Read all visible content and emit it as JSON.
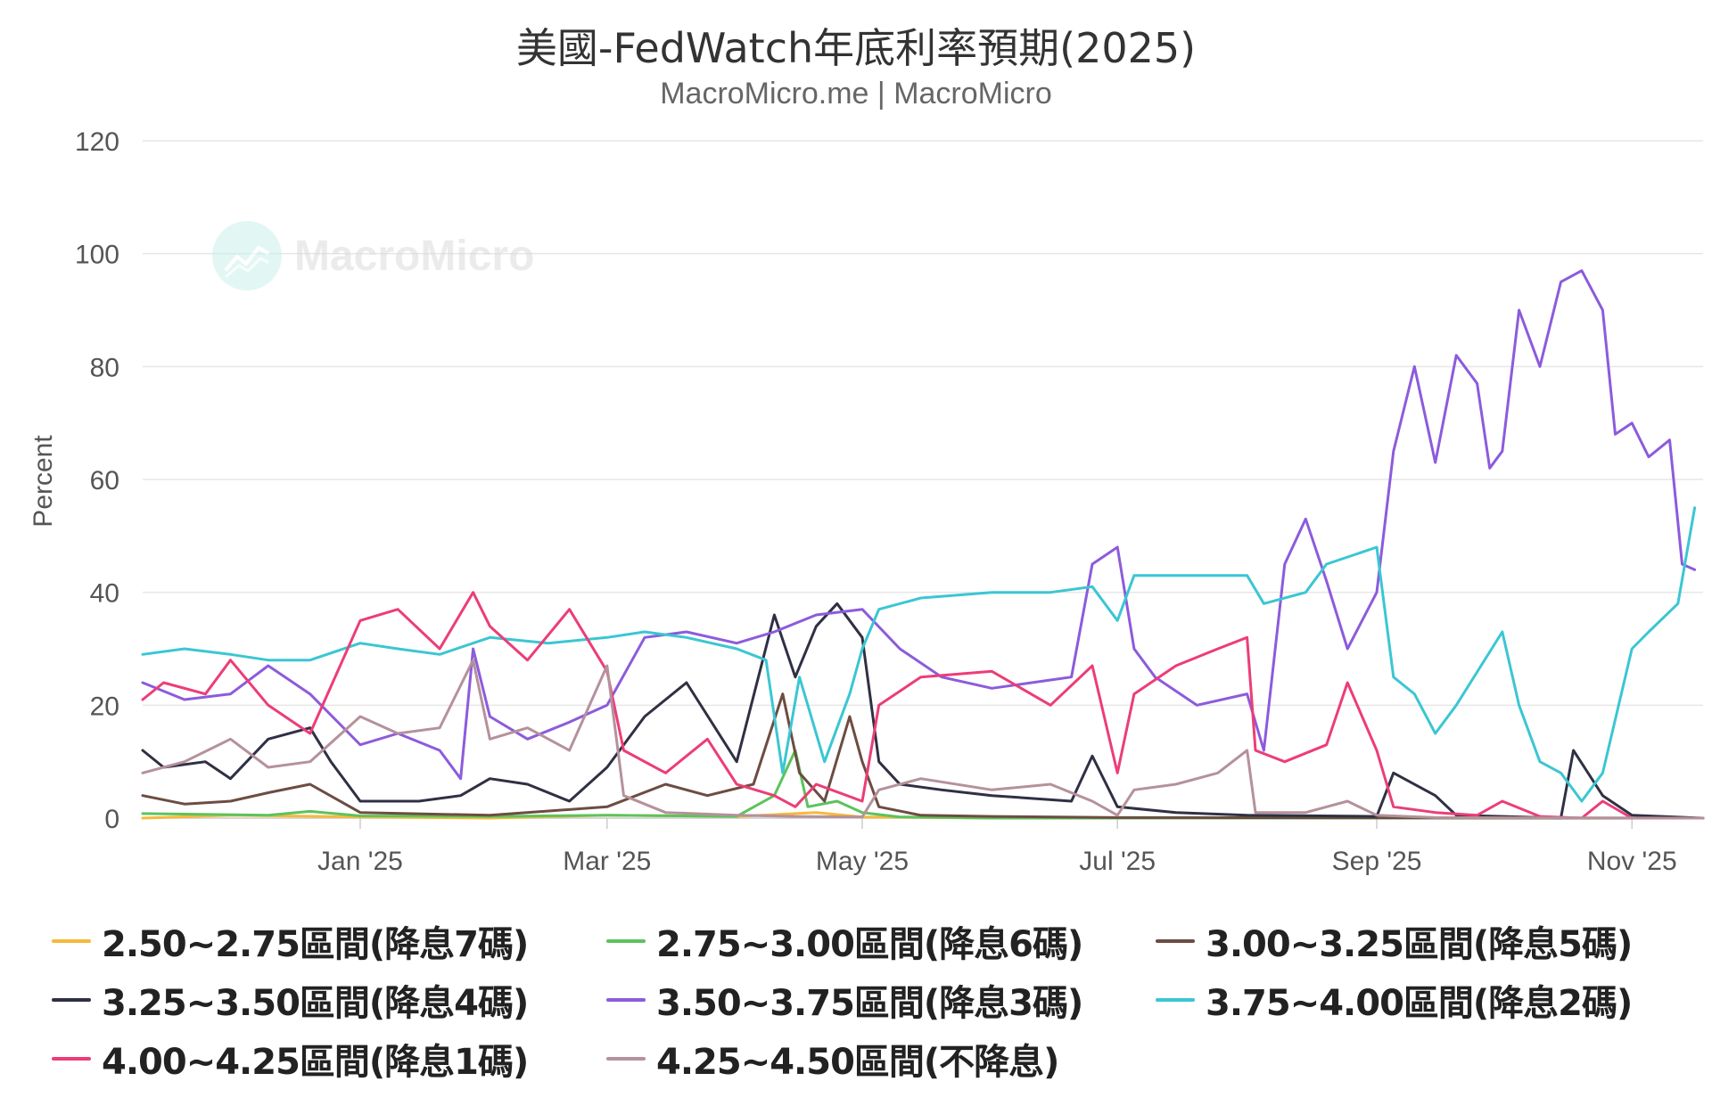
{
  "chart_data": {
    "type": "line",
    "title": "美國-FedWatch年底利率預期(2025)",
    "subtitle": "MacroMicro.me | MacroMicro",
    "watermark": "MacroMicro",
    "ylabel": "Percent",
    "ylim": [
      0,
      120
    ],
    "yticks": [
      0,
      20,
      40,
      60,
      80,
      100,
      120
    ],
    "xlim": [
      "2024-11-10",
      "2025-11-18"
    ],
    "xticks": [
      {
        "date": "2025-01-01",
        "label": "Jan '25"
      },
      {
        "date": "2025-03-01",
        "label": "Mar '25"
      },
      {
        "date": "2025-05-01",
        "label": "May '25"
      },
      {
        "date": "2025-07-01",
        "label": "Jul '25"
      },
      {
        "date": "2025-09-01",
        "label": "Sep '25"
      },
      {
        "date": "2025-11-01",
        "label": "Nov '25"
      }
    ],
    "grid": true,
    "legend_position": "bottom",
    "series": [
      {
        "name": "2.50~2.75區間(降息7碼)",
        "color": "#f6b93b",
        "points": [
          [
            "2024-11-10",
            0
          ],
          [
            "2024-12-01",
            0.5
          ],
          [
            "2025-01-01",
            0.2
          ],
          [
            "2025-02-01",
            0
          ],
          [
            "2025-03-01",
            0.5
          ],
          [
            "2025-04-01",
            0.3
          ],
          [
            "2025-04-20",
            1
          ],
          [
            "2025-05-01",
            0.2
          ],
          [
            "2025-06-01",
            0
          ],
          [
            "2025-09-01",
            0
          ],
          [
            "2025-11-18",
            0
          ]
        ]
      },
      {
        "name": "2.75~3.00區間(降息6碼)",
        "color": "#5cc35c",
        "points": [
          [
            "2024-11-10",
            0.8
          ],
          [
            "2024-12-10",
            0.5
          ],
          [
            "2024-12-20",
            1.2
          ],
          [
            "2025-01-01",
            0.4
          ],
          [
            "2025-02-01",
            0.3
          ],
          [
            "2025-03-01",
            0.5
          ],
          [
            "2025-04-01",
            0.3
          ],
          [
            "2025-04-10",
            4
          ],
          [
            "2025-04-15",
            12
          ],
          [
            "2025-04-18",
            2
          ],
          [
            "2025-04-25",
            3
          ],
          [
            "2025-05-01",
            1
          ],
          [
            "2025-05-10",
            0.2
          ],
          [
            "2025-06-01",
            0
          ],
          [
            "2025-11-18",
            0
          ]
        ]
      },
      {
        "name": "3.00~3.25區間(降息5碼)",
        "color": "#6d4c41",
        "points": [
          [
            "2024-11-10",
            4
          ],
          [
            "2024-11-20",
            2.5
          ],
          [
            "2024-12-01",
            3
          ],
          [
            "2024-12-10",
            4.5
          ],
          [
            "2024-12-20",
            6
          ],
          [
            "2025-01-01",
            1
          ],
          [
            "2025-02-01",
            0.5
          ],
          [
            "2025-03-01",
            2
          ],
          [
            "2025-03-15",
            6
          ],
          [
            "2025-03-25",
            4
          ],
          [
            "2025-04-05",
            6
          ],
          [
            "2025-04-12",
            22
          ],
          [
            "2025-04-16",
            8
          ],
          [
            "2025-04-22",
            3
          ],
          [
            "2025-04-28",
            18
          ],
          [
            "2025-05-01",
            10
          ],
          [
            "2025-05-05",
            2
          ],
          [
            "2025-05-15",
            0.5
          ],
          [
            "2025-06-01",
            0.3
          ],
          [
            "2025-07-01",
            0.1
          ],
          [
            "2025-11-18",
            0
          ]
        ]
      },
      {
        "name": "3.25~3.50區間(降息4碼)",
        "color": "#2f3044",
        "points": [
          [
            "2024-11-10",
            12
          ],
          [
            "2024-11-15",
            9
          ],
          [
            "2024-11-25",
            10
          ],
          [
            "2024-12-01",
            7
          ],
          [
            "2024-12-10",
            14
          ],
          [
            "2024-12-20",
            16
          ],
          [
            "2024-12-25",
            10
          ],
          [
            "2025-01-01",
            3
          ],
          [
            "2025-01-15",
            3
          ],
          [
            "2025-01-25",
            4
          ],
          [
            "2025-02-01",
            7
          ],
          [
            "2025-02-10",
            6
          ],
          [
            "2025-02-20",
            3
          ],
          [
            "2025-03-01",
            9
          ],
          [
            "2025-03-10",
            18
          ],
          [
            "2025-03-20",
            24
          ],
          [
            "2025-04-01",
            10
          ],
          [
            "2025-04-10",
            36
          ],
          [
            "2025-04-15",
            25
          ],
          [
            "2025-04-20",
            34
          ],
          [
            "2025-04-25",
            38
          ],
          [
            "2025-05-01",
            32
          ],
          [
            "2025-05-05",
            10
          ],
          [
            "2025-05-10",
            6
          ],
          [
            "2025-05-20",
            5
          ],
          [
            "2025-06-01",
            4
          ],
          [
            "2025-06-20",
            3
          ],
          [
            "2025-06-25",
            11
          ],
          [
            "2025-07-01",
            2
          ],
          [
            "2025-07-15",
            1
          ],
          [
            "2025-08-01",
            0.5
          ],
          [
            "2025-09-01",
            0.3
          ],
          [
            "2025-09-05",
            8
          ],
          [
            "2025-09-15",
            4
          ],
          [
            "2025-09-20",
            0.5
          ],
          [
            "2025-10-01",
            0.3
          ],
          [
            "2025-10-15",
            0
          ],
          [
            "2025-10-18",
            12
          ],
          [
            "2025-10-25",
            4
          ],
          [
            "2025-11-01",
            0.5
          ],
          [
            "2025-11-18",
            0
          ]
        ]
      },
      {
        "name": "3.50~3.75區間(降息3碼)",
        "color": "#8c5bdc",
        "points": [
          [
            "2024-11-10",
            24
          ],
          [
            "2024-11-20",
            21
          ],
          [
            "2024-12-01",
            22
          ],
          [
            "2024-12-10",
            27
          ],
          [
            "2024-12-20",
            22
          ],
          [
            "2025-01-01",
            13
          ],
          [
            "2025-01-10",
            15
          ],
          [
            "2025-01-20",
            12
          ],
          [
            "2025-01-25",
            7
          ],
          [
            "2025-01-28",
            30
          ],
          [
            "2025-02-01",
            18
          ],
          [
            "2025-02-10",
            14
          ],
          [
            "2025-02-20",
            17
          ],
          [
            "2025-03-01",
            20
          ],
          [
            "2025-03-10",
            32
          ],
          [
            "2025-03-20",
            33
          ],
          [
            "2025-04-01",
            31
          ],
          [
            "2025-04-10",
            33
          ],
          [
            "2025-04-20",
            36
          ],
          [
            "2025-05-01",
            37
          ],
          [
            "2025-05-10",
            30
          ],
          [
            "2025-05-20",
            25
          ],
          [
            "2025-06-01",
            23
          ],
          [
            "2025-06-20",
            25
          ],
          [
            "2025-06-25",
            45
          ],
          [
            "2025-07-01",
            48
          ],
          [
            "2025-07-05",
            30
          ],
          [
            "2025-07-10",
            25
          ],
          [
            "2025-07-20",
            20
          ],
          [
            "2025-08-01",
            22
          ],
          [
            "2025-08-05",
            12
          ],
          [
            "2025-08-10",
            45
          ],
          [
            "2025-08-15",
            53
          ],
          [
            "2025-08-20",
            42
          ],
          [
            "2025-08-25",
            30
          ],
          [
            "2025-09-01",
            40
          ],
          [
            "2025-09-05",
            65
          ],
          [
            "2025-09-10",
            80
          ],
          [
            "2025-09-15",
            63
          ],
          [
            "2025-09-20",
            82
          ],
          [
            "2025-09-25",
            77
          ],
          [
            "2025-09-28",
            62
          ],
          [
            "2025-10-01",
            65
          ],
          [
            "2025-10-05",
            90
          ],
          [
            "2025-10-10",
            80
          ],
          [
            "2025-10-15",
            95
          ],
          [
            "2025-10-20",
            97
          ],
          [
            "2025-10-25",
            90
          ],
          [
            "2025-10-28",
            68
          ],
          [
            "2025-11-01",
            70
          ],
          [
            "2025-11-05",
            64
          ],
          [
            "2025-11-10",
            67
          ],
          [
            "2025-11-13",
            45
          ],
          [
            "2025-11-16",
            44
          ]
        ]
      },
      {
        "name": "3.75~4.00區間(降息2碼)",
        "color": "#3bc6d3",
        "points": [
          [
            "2024-11-10",
            29
          ],
          [
            "2024-11-20",
            30
          ],
          [
            "2024-12-01",
            29
          ],
          [
            "2024-12-10",
            28
          ],
          [
            "2024-12-20",
            28
          ],
          [
            "2025-01-01",
            31
          ],
          [
            "2025-01-10",
            30
          ],
          [
            "2025-01-20",
            29
          ],
          [
            "2025-02-01",
            32
          ],
          [
            "2025-02-15",
            31
          ],
          [
            "2025-03-01",
            32
          ],
          [
            "2025-03-10",
            33
          ],
          [
            "2025-03-20",
            32
          ],
          [
            "2025-04-01",
            30
          ],
          [
            "2025-04-08",
            28
          ],
          [
            "2025-04-12",
            8
          ],
          [
            "2025-04-16",
            25
          ],
          [
            "2025-04-22",
            10
          ],
          [
            "2025-04-28",
            22
          ],
          [
            "2025-05-01",
            30
          ],
          [
            "2025-05-05",
            37
          ],
          [
            "2025-05-15",
            39
          ],
          [
            "2025-06-01",
            40
          ],
          [
            "2025-06-15",
            40
          ],
          [
            "2025-06-25",
            41
          ],
          [
            "2025-07-01",
            35
          ],
          [
            "2025-07-05",
            43
          ],
          [
            "2025-07-20",
            43
          ],
          [
            "2025-08-01",
            43
          ],
          [
            "2025-08-05",
            38
          ],
          [
            "2025-08-15",
            40
          ],
          [
            "2025-08-20",
            45
          ],
          [
            "2025-09-01",
            48
          ],
          [
            "2025-09-05",
            25
          ],
          [
            "2025-09-10",
            22
          ],
          [
            "2025-09-15",
            15
          ],
          [
            "2025-09-20",
            20
          ],
          [
            "2025-10-01",
            33
          ],
          [
            "2025-10-05",
            20
          ],
          [
            "2025-10-10",
            10
          ],
          [
            "2025-10-15",
            8
          ],
          [
            "2025-10-20",
            3
          ],
          [
            "2025-10-25",
            8
          ],
          [
            "2025-11-01",
            30
          ],
          [
            "2025-11-05",
            33
          ],
          [
            "2025-11-12",
            38
          ],
          [
            "2025-11-16",
            55
          ]
        ]
      },
      {
        "name": "4.00~4.25區間(降息1碼)",
        "color": "#ec3d77",
        "points": [
          [
            "2024-11-10",
            21
          ],
          [
            "2024-11-15",
            24
          ],
          [
            "2024-11-25",
            22
          ],
          [
            "2024-12-01",
            28
          ],
          [
            "2024-12-10",
            20
          ],
          [
            "2024-12-20",
            15
          ],
          [
            "2025-01-01",
            35
          ],
          [
            "2025-01-10",
            37
          ],
          [
            "2025-01-20",
            30
          ],
          [
            "2025-01-28",
            40
          ],
          [
            "2025-02-01",
            34
          ],
          [
            "2025-02-10",
            28
          ],
          [
            "2025-02-20",
            37
          ],
          [
            "2025-03-01",
            26
          ],
          [
            "2025-03-05",
            12
          ],
          [
            "2025-03-15",
            8
          ],
          [
            "2025-03-25",
            14
          ],
          [
            "2025-04-01",
            6
          ],
          [
            "2025-04-10",
            4
          ],
          [
            "2025-04-15",
            2
          ],
          [
            "2025-04-20",
            6
          ],
          [
            "2025-05-01",
            3
          ],
          [
            "2025-05-05",
            20
          ],
          [
            "2025-05-15",
            25
          ],
          [
            "2025-06-01",
            26
          ],
          [
            "2025-06-15",
            20
          ],
          [
            "2025-06-25",
            27
          ],
          [
            "2025-07-01",
            8
          ],
          [
            "2025-07-05",
            22
          ],
          [
            "2025-07-15",
            27
          ],
          [
            "2025-07-25",
            30
          ],
          [
            "2025-08-01",
            32
          ],
          [
            "2025-08-03",
            12
          ],
          [
            "2025-08-10",
            10
          ],
          [
            "2025-08-20",
            13
          ],
          [
            "2025-08-25",
            24
          ],
          [
            "2025-09-01",
            12
          ],
          [
            "2025-09-05",
            2
          ],
          [
            "2025-09-15",
            1
          ],
          [
            "2025-09-25",
            0.5
          ],
          [
            "2025-10-01",
            3
          ],
          [
            "2025-10-10",
            0.3
          ],
          [
            "2025-10-20",
            0
          ],
          [
            "2025-10-25",
            3
          ],
          [
            "2025-11-01",
            0
          ],
          [
            "2025-11-18",
            0
          ]
        ]
      },
      {
        "name": "4.25~4.50區間(不降息)",
        "color": "#b5919b",
        "points": [
          [
            "2024-11-10",
            8
          ],
          [
            "2024-11-20",
            10
          ],
          [
            "2024-12-01",
            14
          ],
          [
            "2024-12-10",
            9
          ],
          [
            "2024-12-20",
            10
          ],
          [
            "2025-01-01",
            18
          ],
          [
            "2025-01-10",
            15
          ],
          [
            "2025-01-20",
            16
          ],
          [
            "2025-01-28",
            28
          ],
          [
            "2025-02-01",
            14
          ],
          [
            "2025-02-10",
            16
          ],
          [
            "2025-02-20",
            12
          ],
          [
            "2025-03-01",
            27
          ],
          [
            "2025-03-05",
            4
          ],
          [
            "2025-03-15",
            1
          ],
          [
            "2025-04-01",
            0.5
          ],
          [
            "2025-04-15",
            0.3
          ],
          [
            "2025-05-01",
            0.2
          ],
          [
            "2025-05-05",
            5
          ],
          [
            "2025-05-15",
            7
          ],
          [
            "2025-06-01",
            5
          ],
          [
            "2025-06-15",
            6
          ],
          [
            "2025-06-25",
            3
          ],
          [
            "2025-07-01",
            0.5
          ],
          [
            "2025-07-05",
            5
          ],
          [
            "2025-07-15",
            6
          ],
          [
            "2025-07-25",
            8
          ],
          [
            "2025-08-01",
            12
          ],
          [
            "2025-08-03",
            1
          ],
          [
            "2025-08-15",
            1
          ],
          [
            "2025-08-25",
            3
          ],
          [
            "2025-09-01",
            0.5
          ],
          [
            "2025-09-15",
            0.1
          ],
          [
            "2025-11-18",
            0
          ]
        ]
      }
    ]
  }
}
